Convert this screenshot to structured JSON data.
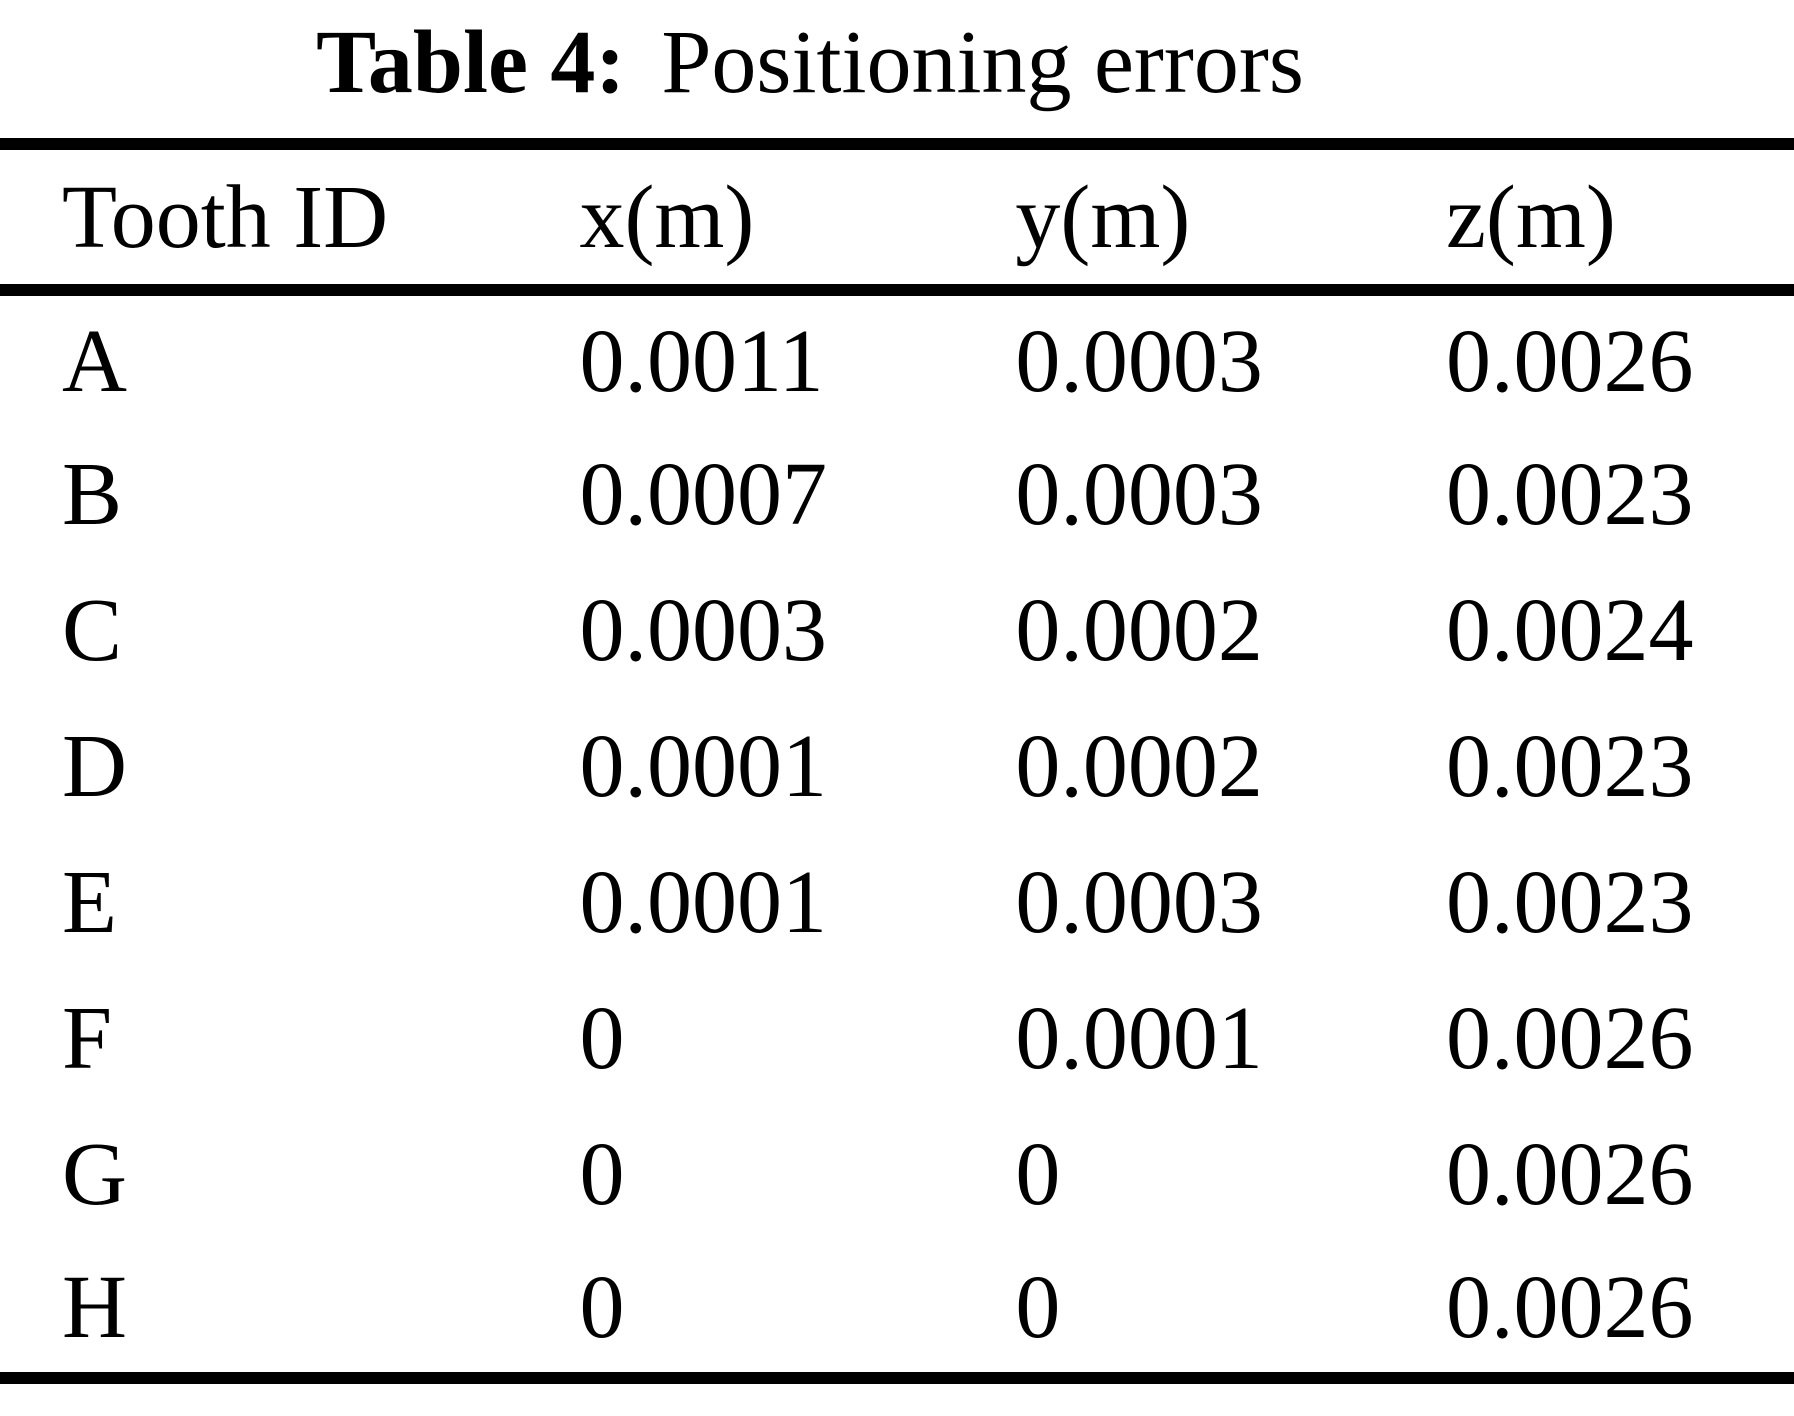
{
  "page": {
    "background_color": "#ffffff",
    "text_color": "#000000"
  },
  "caption": {
    "label": "Table 4:",
    "title": "Positioning errors"
  },
  "table": {
    "headers": [
      "Tooth ID",
      "x(m)",
      "y(m)",
      "z(m)"
    ],
    "rows": [
      [
        "A",
        "0.0011",
        "0.0003",
        "0.0026"
      ],
      [
        "B",
        "0.0007",
        "0.0003",
        "0.0023"
      ],
      [
        "C",
        "0.0003",
        "0.0002",
        "0.0024"
      ],
      [
        "D",
        "0.0001",
        "0.0002",
        "0.0023"
      ],
      [
        "E",
        "0.0001",
        "0.0003",
        "0.0023"
      ],
      [
        "F",
        "0",
        "0.0001",
        "0.0026"
      ],
      [
        "G",
        "0",
        "0",
        "0.0026"
      ],
      [
        "H",
        "0",
        "0",
        "0.0026"
      ]
    ]
  }
}
